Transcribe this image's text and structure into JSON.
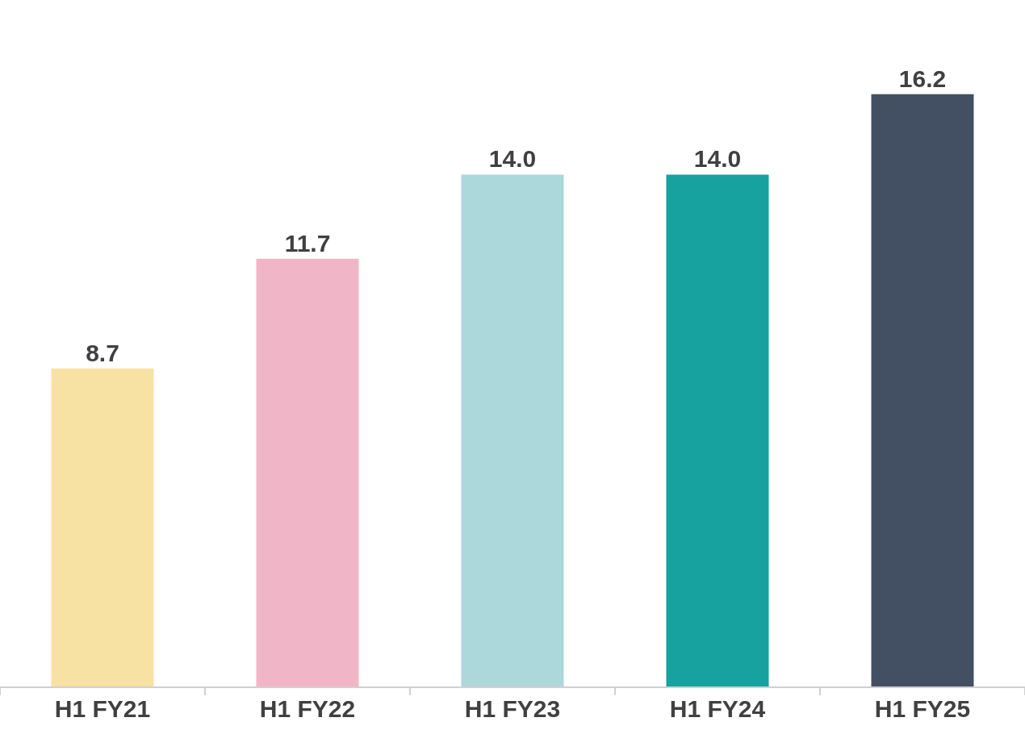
{
  "chart_data": {
    "type": "bar",
    "categories": [
      "H1 FY21",
      "H1 FY22",
      "H1 FY23",
      "H1 FY24",
      "H1 FY25"
    ],
    "values": [
      8.7,
      11.7,
      14.0,
      14.0,
      16.2
    ],
    "colors": [
      "#f7e2a4",
      "#f0b6c8",
      "#acd7db",
      "#17a2a0",
      "#435063"
    ],
    "value_labels": [
      "8.7",
      "11.7",
      "14.0",
      "14.0",
      "16.2"
    ]
  }
}
